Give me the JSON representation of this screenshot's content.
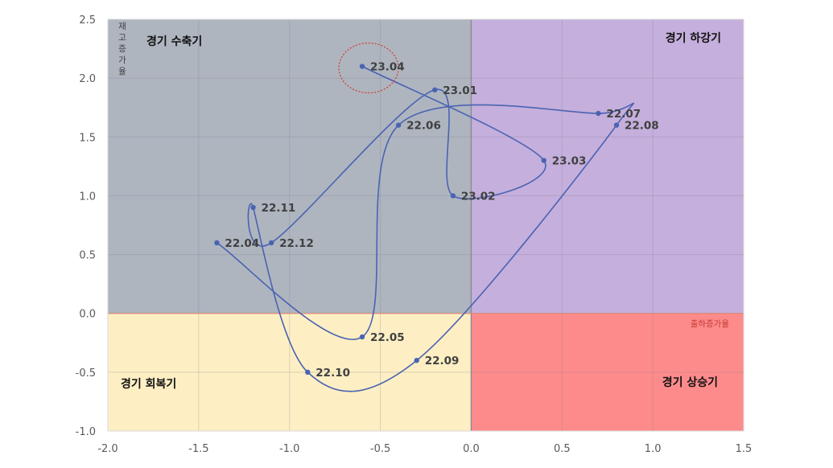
{
  "chart_data": {
    "type": "scatter",
    "title": "",
    "xlabel": "출하증가율",
    "ylabel": "재고증가율",
    "xlim": [
      -2.0,
      1.5
    ],
    "ylim": [
      -1.0,
      2.5
    ],
    "x_ticks": [
      "-2.0",
      "-1.5",
      "-1.0",
      "-0.5",
      "0.0",
      "0.5",
      "1.0",
      "1.5"
    ],
    "y_ticks": [
      "2.5",
      "2.0",
      "1.5",
      "1.0",
      "0.5",
      "0.0",
      "-0.5",
      "-1.0"
    ],
    "grid": true,
    "connected_smooth_line": true,
    "line_color": "#4a63b2",
    "point_color": "#4a63b2",
    "points": [
      {
        "label": "22.04",
        "x": -1.4,
        "y": 0.6
      },
      {
        "label": "22.05",
        "x": -0.6,
        "y": -0.2
      },
      {
        "label": "22.06",
        "x": -0.4,
        "y": 1.6
      },
      {
        "label": "22.07",
        "x": 0.7,
        "y": 1.7
      },
      {
        "label": "22.08",
        "x": 0.8,
        "y": 1.6
      },
      {
        "label": "22.09",
        "x": -0.3,
        "y": -0.4
      },
      {
        "label": "22.10",
        "x": -0.9,
        "y": -0.5
      },
      {
        "label": "22.11",
        "x": -1.2,
        "y": 0.9
      },
      {
        "label": "22.12",
        "x": -1.1,
        "y": 0.6
      },
      {
        "label": "23.01",
        "x": -0.2,
        "y": 1.9
      },
      {
        "label": "23.02",
        "x": -0.1,
        "y": 1.0
      },
      {
        "label": "23.03",
        "x": 0.4,
        "y": 1.3
      },
      {
        "label": "23.04",
        "x": -0.6,
        "y": 2.1
      }
    ],
    "highlight_label": "23.04",
    "quadrants": [
      {
        "name": "경기 수축기",
        "x_range": [
          -2.0,
          0.0
        ],
        "y_range": [
          0.0,
          2.5
        ],
        "color": "#aeb5bf"
      },
      {
        "name": "경기 하강기",
        "x_range": [
          0.0,
          1.5
        ],
        "y_range": [
          0.0,
          2.5
        ],
        "color": "#c5afdc"
      },
      {
        "name": "경기 회복기",
        "x_range": [
          -2.0,
          0.0
        ],
        "y_range": [
          -1.0,
          0.0
        ],
        "color": "#fdefc3"
      },
      {
        "name": "경기 상승기",
        "x_range": [
          0.0,
          1.5
        ],
        "y_range": [
          -1.0,
          0.0
        ],
        "color": "#fe8b8b"
      }
    ],
    "xlabel_color": "#c0392b",
    "ylabel_color": "#404040",
    "highlight_color": "#d9352b"
  }
}
